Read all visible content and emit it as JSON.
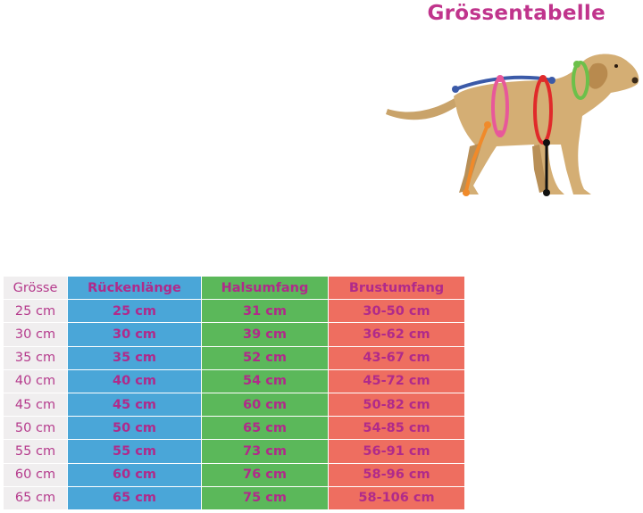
{
  "title": "Grössentabelle",
  "colors": {
    "title": "#c0348c",
    "text": "#b02a8a",
    "size_column": "#f0eeef",
    "back_column": "#4aa6d8",
    "neck_column": "#5bb85a",
    "chest_column": "#ee6e60",
    "measure_back": "#3b5aa8",
    "measure_girth": "#e8589a",
    "measure_chest": "#e02a2a",
    "measure_neck": "#6cc04a",
    "measure_leg": "#f08a2a",
    "measure_height": "#111111"
  },
  "illustration": "dog-measurement-diagram",
  "table": {
    "headers": [
      "Grösse",
      "Rückenlänge",
      "Halsumfang",
      "Brustumfang"
    ],
    "rows": [
      [
        "25 cm",
        "25 cm",
        "31 cm",
        "30-50 cm"
      ],
      [
        "30 cm",
        "30 cm",
        "39 cm",
        "36-62 cm"
      ],
      [
        "35 cm",
        "35 cm",
        "52 cm",
        "43-67 cm"
      ],
      [
        "40 cm",
        "40 cm",
        "54 cm",
        "45-72 cm"
      ],
      [
        "45 cm",
        "45 cm",
        "60 cm",
        "50-82 cm"
      ],
      [
        "50 cm",
        "50 cm",
        "65 cm",
        "54-85 cm"
      ],
      [
        "55 cm",
        "55 cm",
        "73 cm",
        "56-91 cm"
      ],
      [
        "60 cm",
        "60 cm",
        "76 cm",
        "58-96 cm"
      ],
      [
        "65 cm",
        "65 cm",
        "75 cm",
        "58-106 cm"
      ]
    ]
  }
}
